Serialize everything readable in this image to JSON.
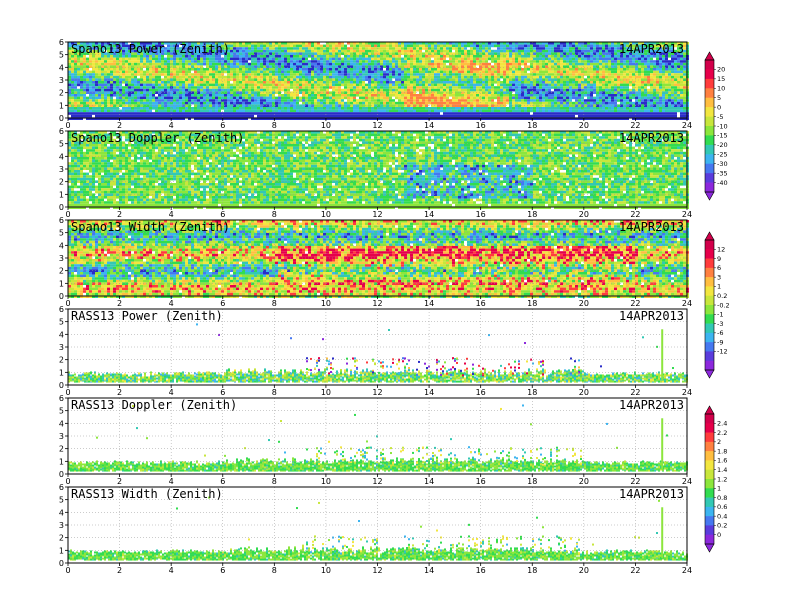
{
  "chart_data": [
    {
      "type": "heatmap",
      "title": "Spano13 Power (Zenith)",
      "date_label": "14APR2013",
      "xlim": [
        0,
        24
      ],
      "ylim": [
        0,
        6
      ],
      "x_ticks": [
        "0",
        "2",
        "4",
        "6",
        "8",
        "10",
        "12",
        "14",
        "16",
        "18",
        "20",
        "22",
        "24"
      ],
      "y_ticks": [
        "0",
        "1",
        "2",
        "3",
        "4",
        "5",
        "6"
      ],
      "color_scale": "power",
      "fill": "dense",
      "grid": true
    },
    {
      "type": "heatmap",
      "title": "Spano13 Doppler (Zenith)",
      "date_label": "14APR2013",
      "xlim": [
        0,
        24
      ],
      "ylim": [
        0,
        6
      ],
      "x_ticks": [
        "0",
        "2",
        "4",
        "6",
        "8",
        "10",
        "12",
        "14",
        "16",
        "18",
        "20",
        "22",
        "24"
      ],
      "y_ticks": [
        "0",
        "1",
        "2",
        "3",
        "4",
        "5",
        "6"
      ],
      "color_scale": "power",
      "fill": "dense",
      "grid": true
    },
    {
      "type": "heatmap",
      "title": "Spano13 Width (Zenith)",
      "date_label": "14APR2013",
      "xlim": [
        0,
        24
      ],
      "ylim": [
        0,
        6
      ],
      "x_ticks": [
        "0",
        "2",
        "4",
        "6",
        "8",
        "10",
        "12",
        "14",
        "16",
        "18",
        "20",
        "22",
        "24"
      ],
      "y_ticks": [
        "0",
        "1",
        "2",
        "3",
        "4",
        "5",
        "6"
      ],
      "color_scale": "doppler",
      "fill": "dense",
      "grid": true
    },
    {
      "type": "heatmap",
      "title": "RASS13 Power (Zenith)",
      "date_label": "14APR2013",
      "xlim": [
        0,
        24
      ],
      "ylim": [
        0,
        6
      ],
      "x_ticks": [
        "0",
        "2",
        "4",
        "6",
        "8",
        "10",
        "12",
        "14",
        "16",
        "18",
        "20",
        "22",
        "24"
      ],
      "y_ticks": [
        "0",
        "1",
        "2",
        "3",
        "4",
        "5",
        "6"
      ],
      "color_scale": "doppler",
      "fill": "sparse",
      "spike_hour": 23,
      "grid": true
    },
    {
      "type": "heatmap",
      "title": "RASS13 Doppler (Zenith)",
      "date_label": "14APR2013",
      "xlim": [
        0,
        24
      ],
      "ylim": [
        0,
        6
      ],
      "x_ticks": [
        "0",
        "2",
        "4",
        "6",
        "8",
        "10",
        "12",
        "14",
        "16",
        "18",
        "20",
        "22",
        "24"
      ],
      "y_ticks": [
        "0",
        "1",
        "2",
        "3",
        "4",
        "5",
        "6"
      ],
      "color_scale": "width",
      "fill": "sparse",
      "spike_hour": 23,
      "grid": true
    },
    {
      "type": "heatmap",
      "title": "RASS13 Width (Zenith)",
      "date_label": "14APR2013",
      "xlim": [
        0,
        24
      ],
      "ylim": [
        0,
        6
      ],
      "x_ticks": [
        "0",
        "2",
        "4",
        "6",
        "8",
        "10",
        "12",
        "14",
        "16",
        "18",
        "20",
        "22",
        "24"
      ],
      "y_ticks": [
        "0",
        "1",
        "2",
        "3",
        "4",
        "5",
        "6"
      ],
      "color_scale": "width",
      "fill": "sparse",
      "spike_hour": 23,
      "grid": true
    }
  ],
  "colorbars": [
    {
      "labels": [
        "20",
        "15",
        "10",
        "5",
        "0",
        "-5",
        "-10",
        "-15",
        "-20",
        "-25",
        "-30",
        "-35",
        "-40"
      ],
      "colors": [
        "#d2004b",
        "#e6004a",
        "#ff3c3c",
        "#ff8040",
        "#ffbe40",
        "#f2e640",
        "#c8e63c",
        "#8ce63c",
        "#32dc50",
        "#32c8b4",
        "#3cb4f0",
        "#4678f0",
        "#5a3cdc",
        "#8c28dc"
      ]
    },
    {
      "labels": [
        "12",
        "9",
        "6",
        "3",
        "1",
        "0.2",
        "-0.2",
        "-1",
        "-3",
        "-6",
        "-9",
        "-12"
      ],
      "colors": [
        "#d2004b",
        "#e6004a",
        "#ff3c3c",
        "#ff8040",
        "#ffbe40",
        "#f2e640",
        "#c8e63c",
        "#8ce63c",
        "#32dc50",
        "#32c8b4",
        "#3cb4f0",
        "#4678f0",
        "#5a3cdc",
        "#8c28dc"
      ]
    },
    {
      "labels": [
        "2.4",
        "2.2",
        "2",
        "1.8",
        "1.6",
        "1.4",
        "1.2",
        "1",
        "0.8",
        "0.6",
        "0.4",
        "0.2",
        "0"
      ],
      "colors": [
        "#d2004b",
        "#e6004a",
        "#ff3c3c",
        "#ff8040",
        "#ffbe40",
        "#f2e640",
        "#c8e63c",
        "#8ce63c",
        "#32dc50",
        "#32c8b4",
        "#3cb4f0",
        "#4678f0",
        "#5a3cdc",
        "#8c28dc"
      ]
    }
  ]
}
